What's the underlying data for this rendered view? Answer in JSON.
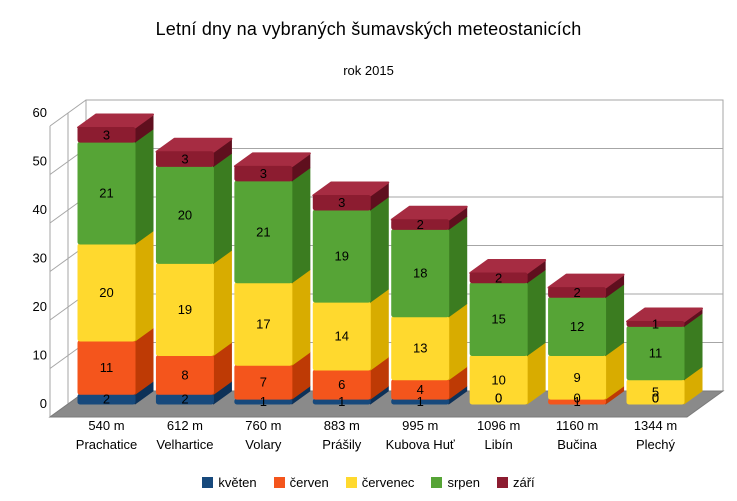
{
  "title": "Letní dny na vybraných šumavských meteostanicích",
  "subtitle": "rok 2015",
  "chart_data": {
    "type": "bar",
    "stacked": true,
    "style": "3d-boxes",
    "title": "Letní dny na vybraných šumavských meteostanicích",
    "subtitle": "rok 2015",
    "ylim": [
      0,
      60
    ],
    "ytick_step": 10,
    "yticks": [
      "0",
      "10",
      "20",
      "30",
      "40",
      "50",
      "60"
    ],
    "grid": true,
    "legend_position": "bottom",
    "categories": [
      {
        "altitude": "540 m",
        "name": "Prachatice"
      },
      {
        "altitude": "612 m",
        "name": "Velhartice"
      },
      {
        "altitude": "760 m",
        "name": "Volary"
      },
      {
        "altitude": "883 m",
        "name": "Prášily"
      },
      {
        "altitude": "995 m",
        "name": "Kubova Huť"
      },
      {
        "altitude": "1096 m",
        "name": "Libín"
      },
      {
        "altitude": "1160 m",
        "name": "Bučina"
      },
      {
        "altitude": "1344 m",
        "name": "Plechý"
      }
    ],
    "series": [
      {
        "name": "květen",
        "color": "#17497C",
        "side": "#0D3158",
        "top": "#2F6BA8",
        "values": [
          2,
          2,
          1,
          1,
          1,
          0,
          0,
          0
        ]
      },
      {
        "name": "červen",
        "color": "#F4551C",
        "side": "#BE3A05",
        "top": "#FB7F3C",
        "values": [
          11,
          8,
          7,
          6,
          4,
          0,
          1,
          0
        ]
      },
      {
        "name": "červenec",
        "color": "#FFD92E",
        "side": "#D8AC00",
        "top": "#FFE868",
        "values": [
          20,
          19,
          17,
          14,
          13,
          10,
          9,
          5
        ]
      },
      {
        "name": "srpen",
        "color": "#56A436",
        "side": "#3B7C20",
        "top": "#73BF54",
        "values": [
          21,
          20,
          21,
          19,
          18,
          15,
          12,
          11
        ]
      },
      {
        "name": "září",
        "color": "#8C1C30",
        "side": "#5F0F1E",
        "top": "#A62C42",
        "values": [
          3,
          3,
          3,
          3,
          2,
          2,
          2,
          1
        ]
      }
    ],
    "totals": [
      57,
      52,
      49,
      43,
      38,
      27,
      24,
      17
    ],
    "colors": {
      "wall_line": "#A6A6A6",
      "floor": "#8A8A8A",
      "floor_edge": "#7B7B7B",
      "background": "#FFFFFF",
      "label_text": "#000000"
    }
  }
}
